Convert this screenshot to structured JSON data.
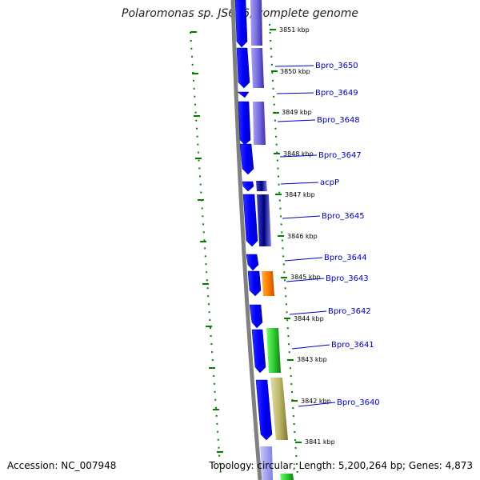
{
  "title": "Polaromonas sp. JS666, complete genome",
  "accession_text": "Accession: NC_007948",
  "stats_text": "Topology: circular; Length: 5,200,264 bp; Genes: 4,873",
  "colors": {
    "backbone": "#808080",
    "orf": "#0000ff",
    "gc_ticks": "#008000",
    "label_line": "#0000c8"
  },
  "tick_labels": [
    "3851 kbp",
    "3850 kbp",
    "3849 kbp",
    "3848 kbp",
    "3847 kbp",
    "3846 kbp",
    "3845 kbp",
    "3844 kbp",
    "3843 kbp",
    "3842 kbp",
    "3841 kbp"
  ],
  "gene_labels": [
    "Bpro_3650",
    "Bpro_3649",
    "Bpro_3648",
    "Bpro_3647",
    "acpP",
    "Bpro_3645",
    "Bpro_3644",
    "Bpro_3643",
    "Bpro_3642",
    "Bpro_3641",
    "Bpro_3640"
  ]
}
